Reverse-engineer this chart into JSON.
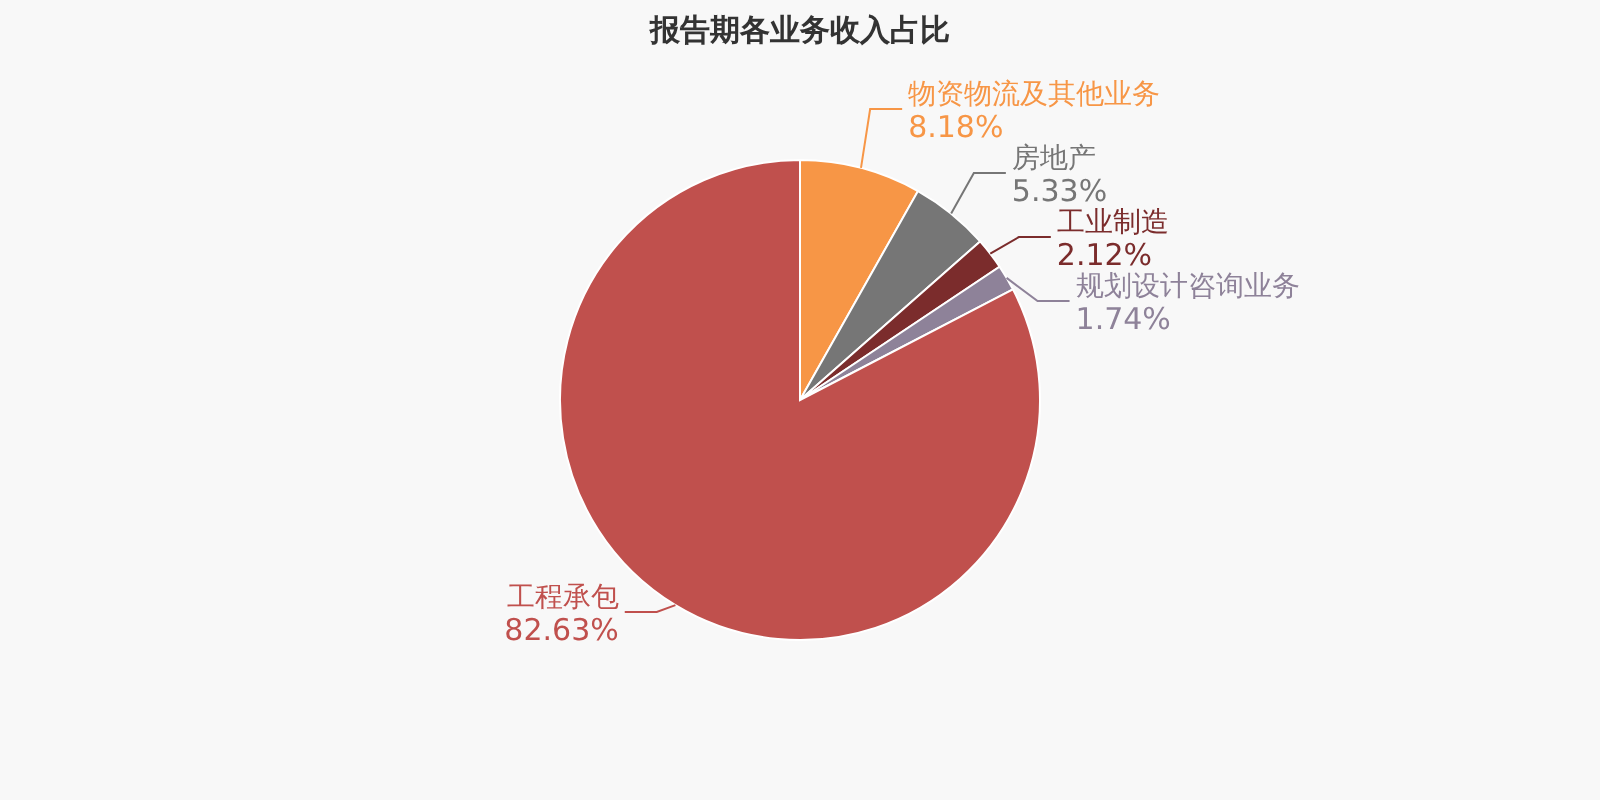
{
  "chart_data": {
    "type": "pie",
    "title": "报告期各业务收入占比",
    "categories": [
      "物资物流及其他业务",
      "房地产",
      "工业制造",
      "规划设计咨询业务",
      "工程承包"
    ],
    "values": [
      8.18,
      5.33,
      2.12,
      1.74,
      82.63
    ],
    "colors": [
      "#f79646",
      "#767676",
      "#7b2c2c",
      "#8e8299",
      "#c0504d"
    ],
    "value_labels": [
      "8.18%",
      "5.33%",
      "2.12%",
      "1.74%",
      "82.63%"
    ]
  }
}
